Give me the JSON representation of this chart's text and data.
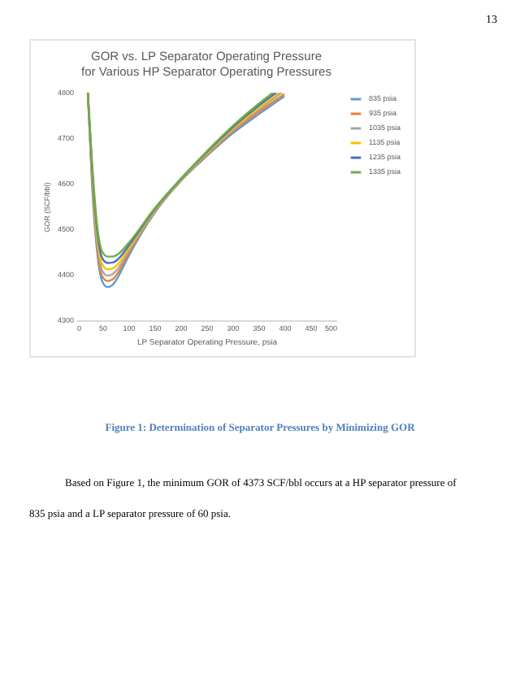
{
  "chart_data": {
    "type": "line",
    "title": "GOR vs. LP Separator Operating Pressure\nfor Various HP Separator Operating Pressures",
    "xlabel": "LP Separator Operating Pressure, psia",
    "ylabel": "GOR (SCF/bbl)",
    "x": [
      22,
      30,
      40,
      50,
      60,
      70,
      80,
      100,
      150,
      200,
      250,
      300,
      350,
      400
    ],
    "series": [
      {
        "name": "835 psia",
        "color": "#5b9bd5",
        "values": [
          4800,
          4600,
          4450,
          4385,
          4373,
          4378,
          4395,
          4440,
          4535,
          4605,
          4660,
          4710,
          4752,
          4792
        ]
      },
      {
        "name": "935 psia",
        "color": "#ed7d31",
        "values": [
          4800,
          4610,
          4460,
          4396,
          4386,
          4390,
          4404,
          4446,
          4537,
          4606,
          4662,
          4714,
          4757,
          4797
        ]
      },
      {
        "name": "1035 psia",
        "color": "#a5a5a5",
        "x": [
          22,
          30,
          40,
          50,
          60,
          70,
          80,
          100,
          150,
          200,
          250,
          300,
          350,
          395
        ],
        "values": [
          4800,
          4620,
          4472,
          4408,
          4398,
          4402,
          4413,
          4451,
          4539,
          4607,
          4664,
          4717,
          4762,
          4800
        ]
      },
      {
        "name": "1135 psia",
        "color": "#ffc000",
        "x": [
          22,
          30,
          40,
          50,
          60,
          70,
          80,
          100,
          150,
          200,
          250,
          300,
          350,
          390
        ],
        "values": [
          4800,
          4630,
          4484,
          4422,
          4412,
          4414,
          4423,
          4457,
          4541,
          4608,
          4666,
          4720,
          4766,
          4800
        ]
      },
      {
        "name": "1235 psia",
        "color": "#4472c4",
        "x": [
          22,
          30,
          40,
          50,
          60,
          70,
          80,
          100,
          150,
          200,
          250,
          300,
          350,
          384
        ],
        "values": [
          4800,
          4640,
          4496,
          4436,
          4426,
          4427,
          4434,
          4463,
          4543,
          4609,
          4668,
          4723,
          4771,
          4800
        ]
      },
      {
        "name": "1335 psia",
        "color": "#70ad47",
        "x": [
          22,
          30,
          40,
          50,
          60,
          70,
          80,
          100,
          150,
          200,
          250,
          300,
          350,
          378
        ],
        "values": [
          4800,
          4650,
          4508,
          4450,
          4440,
          4440,
          4445,
          4469,
          4545,
          4610,
          4670,
          4726,
          4775,
          4800
        ]
      }
    ],
    "xlim": [
      0,
      500
    ],
    "xticks": [
      0,
      50,
      100,
      150,
      200,
      250,
      300,
      350,
      400,
      450,
      500
    ],
    "ylim": [
      4300,
      4800
    ],
    "yticks": [
      4300,
      4400,
      4500,
      4600,
      4700,
      4800
    ],
    "legend": "right",
    "annotations": [
      "13",
      "Figure 1: Determination of Separator Pressures by Minimizing GOR",
      "Based on Figure 1, the minimum GOR of 4373 SCF/bbl occurs at a HP separator pressure of 835 psia and a LP separator pressure of 60 psia."
    ]
  }
}
